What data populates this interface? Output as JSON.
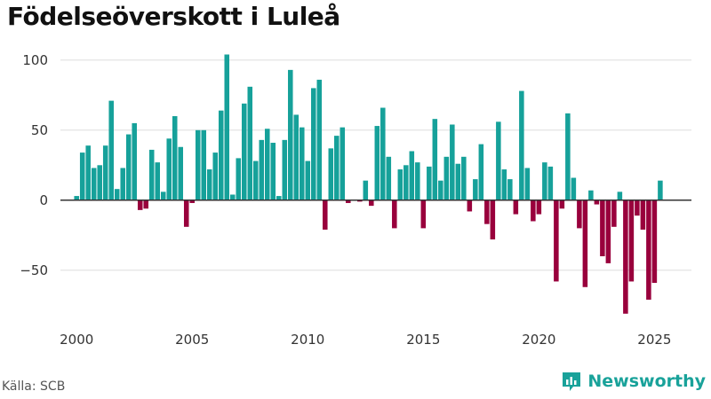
{
  "title": "Födelseöverskott i Luleå",
  "source": "Källa: SCB",
  "brand": {
    "name": "Newsworthy",
    "icon": "newsworthy-logo-icon"
  },
  "colors": {
    "positive": "#16a19a",
    "negative": "#99003c",
    "grid": "#dddddd",
    "zero": "#333333"
  },
  "chart_data": {
    "type": "bar",
    "title": "Födelseöverskott i Luleå",
    "xlabel": "",
    "ylabel": "",
    "xlim": [
      1999.3,
      2026.6
    ],
    "ylim": [
      -90,
      110
    ],
    "yticks": [
      -50,
      0,
      50,
      100
    ],
    "ytick_labels": [
      "−50",
      "0",
      "50",
      "100"
    ],
    "xticks": [
      2000,
      2005,
      2010,
      2015,
      2020,
      2025
    ],
    "xtick_labels": [
      "2000",
      "2005",
      "2010",
      "2015",
      "2020",
      "2025"
    ],
    "start": 2000.0,
    "step": 0.25,
    "values": [
      3,
      34,
      39,
      23,
      25,
      39,
      71,
      8,
      23,
      47,
      55,
      -7,
      -6,
      36,
      27,
      6,
      44,
      60,
      38,
      -19,
      -2,
      50,
      50,
      22,
      34,
      64,
      104,
      4,
      30,
      69,
      81,
      28,
      43,
      51,
      41,
      3,
      43,
      93,
      61,
      52,
      28,
      80,
      86,
      -21,
      37,
      46,
      52,
      -2,
      0,
      -1,
      14,
      -4,
      53,
      66,
      31,
      -20,
      22,
      25,
      35,
      27,
      -20,
      24,
      58,
      14,
      31,
      54,
      26,
      31,
      -8,
      15,
      40,
      -17,
      -28,
      56,
      22,
      15,
      -10,
      78,
      23,
      -15,
      -10,
      27,
      24,
      -58,
      -6,
      62,
      16,
      -20,
      -62,
      7,
      -3,
      -40,
      -45,
      -19,
      6,
      -81,
      -58,
      -11,
      -21,
      -71,
      -59,
      14
    ]
  }
}
